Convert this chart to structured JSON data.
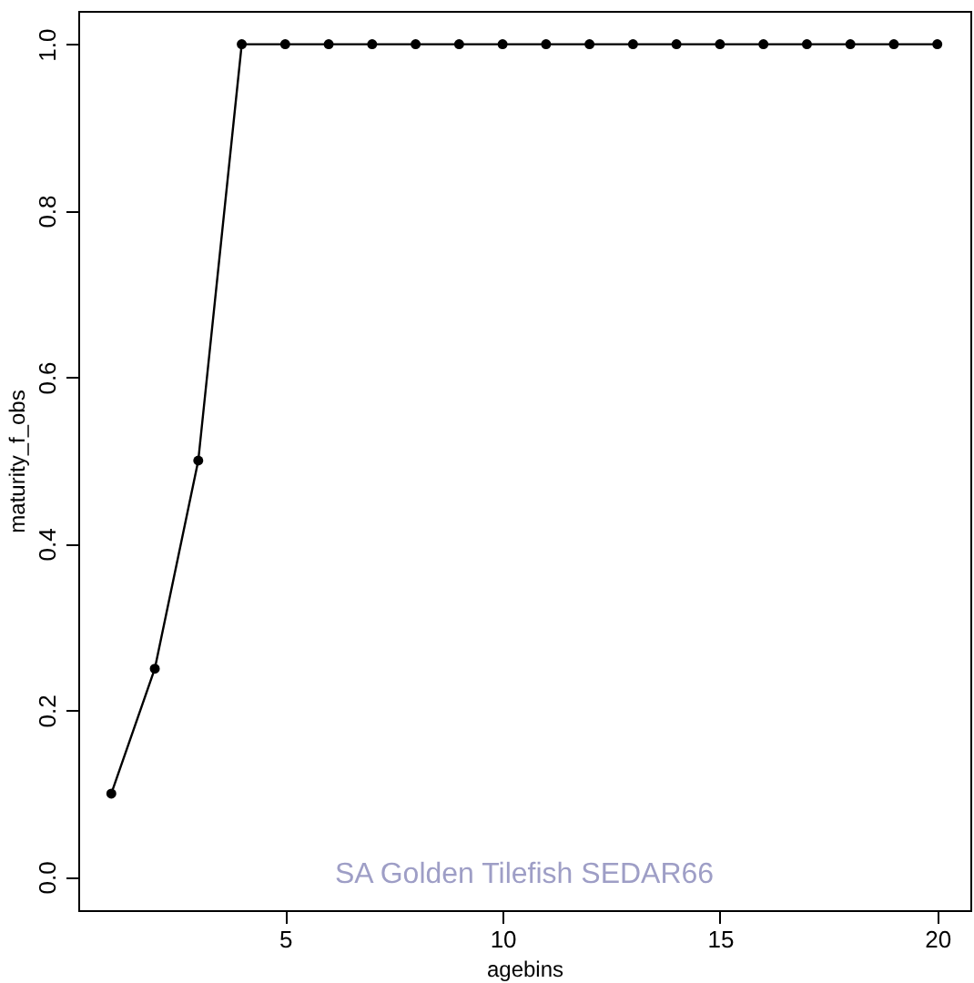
{
  "chart_data": {
    "type": "line",
    "xlabel": "agebins",
    "ylabel": "maturity_f_obs",
    "x": [
      1,
      2,
      3,
      4,
      5,
      6,
      7,
      8,
      9,
      10,
      11,
      12,
      13,
      14,
      15,
      16,
      17,
      18,
      19,
      20
    ],
    "series": [
      {
        "color": "#000000",
        "values": [
          0.1,
          0.25,
          0.5,
          1,
          1,
          1,
          1,
          1,
          1,
          1,
          1,
          1,
          1,
          1,
          1,
          1,
          1,
          1,
          1,
          1
        ]
      }
    ],
    "xlim": [
      0.24,
      20.76
    ],
    "ylim": [
      -0.04,
      1.04
    ],
    "xticks": [
      5,
      10,
      15,
      20
    ],
    "yticks": [
      {
        "value": 0,
        "label": "0.0"
      },
      {
        "value": 0.2,
        "label": "0.2"
      },
      {
        "value": 0.4,
        "label": "0.4"
      },
      {
        "value": 0.6,
        "label": "0.6"
      },
      {
        "value": 0.8,
        "label": "0.8"
      },
      {
        "value": 1,
        "label": "1.0"
      }
    ],
    "marker": "circle",
    "line_style": "solid",
    "grid": false,
    "annotations": [
      "SA Golden Tilefish SEDAR66"
    ]
  }
}
